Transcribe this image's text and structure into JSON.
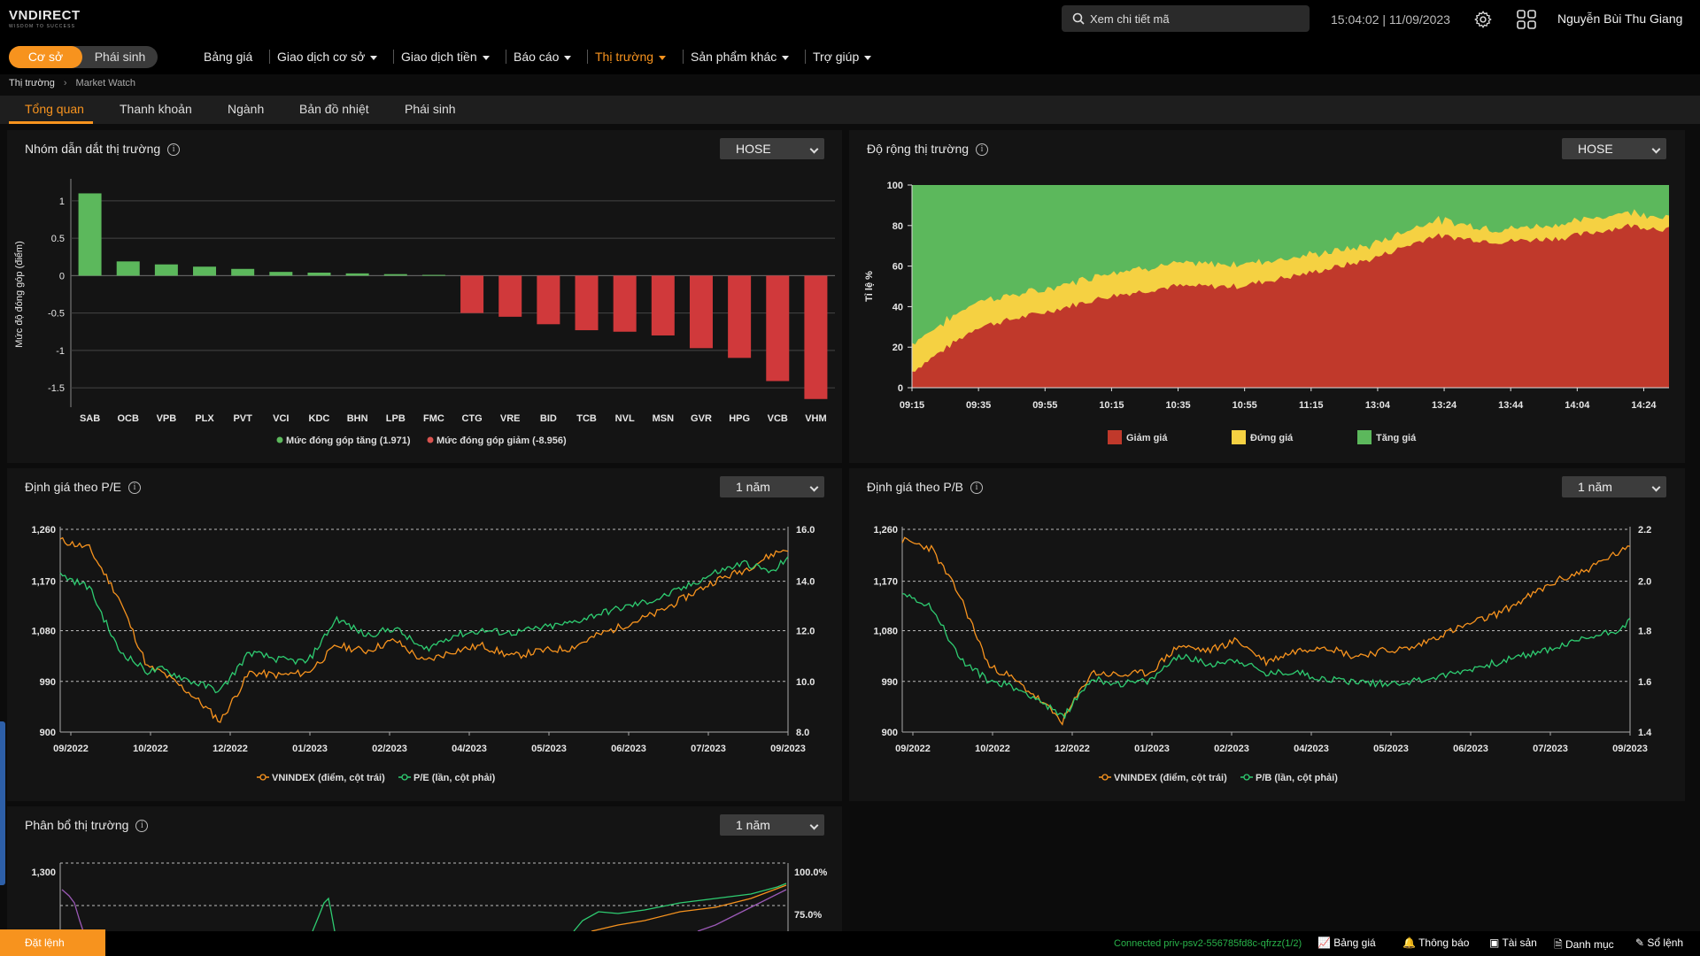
{
  "header": {
    "logo": "VNDIRECT",
    "logo_tagline": "WISDOM TO SUCCESS",
    "search_placeholder": "Xem chi tiết mã",
    "clock": "15:04:02 | 11/09/2023",
    "user_name": "Nguyễn Bùi Thu Giang"
  },
  "nav": {
    "toggle": [
      "Cơ sở",
      "Phái sinh"
    ],
    "items": [
      {
        "label": "Bảng giá",
        "caret": false,
        "active": false
      },
      {
        "label": "Giao dịch cơ sở",
        "caret": true,
        "active": false
      },
      {
        "label": "Giao dịch tiền",
        "caret": true,
        "active": false
      },
      {
        "label": "Báo cáo",
        "caret": true,
        "active": false
      },
      {
        "label": "Thị trường",
        "caret": true,
        "active": true
      },
      {
        "label": "Sản phẩm khác",
        "caret": true,
        "active": false
      },
      {
        "label": "Trợ giúp",
        "caret": true,
        "active": false
      }
    ]
  },
  "breadcrumb": {
    "parent": "Thị trường",
    "current": "Market Watch"
  },
  "tabs": [
    "Tổng quan",
    "Thanh khoản",
    "Ngành",
    "Bản đồ nhiệt",
    "Phái sinh"
  ],
  "colors": {
    "accent": "#f7931e",
    "up": "#5cb85c",
    "down": "#c0392b",
    "ref": "#f5d142",
    "line_orange": "#f7931e",
    "line_green": "#2ecc71"
  },
  "panels": {
    "leaders": {
      "title": "Nhóm dẫn dắt thị trường",
      "select": "HOSE"
    },
    "breadth": {
      "title": "Độ rộng thị trường",
      "select": "HOSE"
    },
    "pe": {
      "title": "Định giá theo P/E",
      "select": "1 năm"
    },
    "pb": {
      "title": "Định giá theo P/B",
      "select": "1 năm"
    },
    "alloc": {
      "title": "Phân bổ thị trường",
      "select": "1 năm"
    }
  },
  "chart_data": [
    {
      "type": "bar",
      "ylabel": "Mức độ đóng góp (điểm)",
      "ylim": [
        -1.7,
        1.2
      ],
      "yticks": [
        1,
        0.5,
        0,
        -0.5,
        -1,
        -1.5
      ],
      "ytick_labels": [
        "1",
        "0.5",
        "0",
        "-0.5",
        "-1",
        "-1.5"
      ],
      "categories": [
        "SAB",
        "OCB",
        "VPB",
        "PLX",
        "PVT",
        "VCI",
        "KDC",
        "BHN",
        "LPB",
        "FMC",
        "CTG",
        "VRE",
        "BID",
        "TCB",
        "NVL",
        "MSN",
        "GVR",
        "HPG",
        "VCB",
        "VHM"
      ],
      "values": [
        1.1,
        0.19,
        0.15,
        0.12,
        0.09,
        0.05,
        0.04,
        0.03,
        0.02,
        0.01,
        -0.5,
        -0.55,
        -0.65,
        -0.73,
        -0.75,
        -0.8,
        -0.97,
        -1.1,
        -1.41,
        -1.65
      ],
      "legend": [
        {
          "name": "Mức đóng góp tăng (1.971)",
          "color": "#5cb85c"
        },
        {
          "name": "Mức đóng góp giảm (-8.956)",
          "color": "#d9534f"
        }
      ]
    },
    {
      "type": "area",
      "ylabel": "Tỉ lệ %",
      "ylim": [
        0,
        100
      ],
      "yticks": [
        0,
        20,
        40,
        60,
        80,
        100
      ],
      "xtick_labels": [
        "09:15",
        "09:35",
        "09:55",
        "10:15",
        "10:35",
        "10:55",
        "11:15",
        "13:04",
        "13:24",
        "13:44",
        "14:04",
        "14:24"
      ],
      "x_index": [
        0,
        5,
        10,
        15,
        20,
        25,
        30,
        35,
        40,
        45,
        50,
        55,
        58
      ],
      "decline": [
        8,
        30,
        37,
        45,
        50,
        50,
        56,
        63,
        75,
        72,
        74,
        80,
        78
      ],
      "unchanged": [
        14,
        13,
        11,
        12,
        11,
        11,
        9,
        7,
        8,
        6,
        7,
        7,
        6
      ],
      "legend": [
        {
          "name": "Giảm giá",
          "color": "#c0392b"
        },
        {
          "name": "Đứng giá",
          "color": "#f5d142"
        },
        {
          "name": "Tăng giá",
          "color": "#5cb85c"
        }
      ]
    },
    {
      "type": "line",
      "ylim_left": [
        900,
        1280
      ],
      "yticks_left": [
        1260,
        1170,
        1080,
        990,
        900
      ],
      "ytick_labels_left": [
        "1,260",
        "1,170",
        "1,080",
        "990",
        "900"
      ],
      "ylim_right": [
        8,
        16.5
      ],
      "ytick_labels_right": [
        "16.0",
        "14.0",
        "12.0",
        "10.0",
        "8.0"
      ],
      "xtick_labels": [
        "09/2022",
        "10/2022",
        "12/2022",
        "01/2023",
        "02/2023",
        "04/2023",
        "05/2023",
        "06/2023",
        "07/2023",
        "09/2023"
      ],
      "x_index": [
        0,
        4,
        8,
        12,
        14,
        18,
        22,
        26,
        30,
        34,
        38,
        42,
        46,
        50,
        54,
        58,
        62,
        66,
        70,
        74,
        78,
        82,
        86,
        90,
        94,
        98,
        100
      ],
      "series": [
        {
          "name": "VNINDEX (điểm, cột trái)",
          "color": "#f7931e",
          "values": [
            1255,
            1240,
            1150,
            1020,
            1010,
            970,
            920,
            1010,
            1005,
            1010,
            1060,
            1050,
            1070,
            1030,
            1050,
            1060,
            1040,
            1050,
            1055,
            1080,
            1100,
            1120,
            1150,
            1180,
            1200,
            1230,
            1240
          ]
        },
        {
          "name": "P/E (lần, cột phải)",
          "color": "#2ecc71",
          "values": [
            14.5,
            14.0,
            11.4,
            10.5,
            10.6,
            10.1,
            9.7,
            11.3,
            11.0,
            10.9,
            12.7,
            12.0,
            12.3,
            11.4,
            12.0,
            12.2,
            12.1,
            12.3,
            12.5,
            12.9,
            13.2,
            13.5,
            14.0,
            14.6,
            15.0,
            14.6,
            15.3
          ]
        }
      ],
      "legend": [
        "VNINDEX (điểm, cột trái)",
        "P/E (lần, cột phải)"
      ]
    },
    {
      "type": "line",
      "ylim_left": [
        900,
        1280
      ],
      "yticks_left": [
        1260,
        1170,
        1080,
        990,
        900
      ],
      "ytick_labels_left": [
        "1,260",
        "1,170",
        "1,080",
        "990",
        "900"
      ],
      "ylim_right": [
        1.4,
        2.25
      ],
      "ytick_labels_right": [
        "2.2",
        "2.0",
        "1.8",
        "1.6",
        "1.4"
      ],
      "xtick_labels": [
        "09/2022",
        "10/2022",
        "12/2022",
        "01/2023",
        "02/2023",
        "04/2023",
        "05/2023",
        "06/2023",
        "07/2023",
        "09/2023"
      ],
      "x_index": [
        0,
        4,
        8,
        12,
        14,
        18,
        22,
        26,
        30,
        34,
        38,
        42,
        46,
        50,
        54,
        58,
        62,
        66,
        70,
        74,
        78,
        82,
        86,
        90,
        94,
        98,
        100
      ],
      "series": [
        {
          "name": "VNINDEX (điểm, cột trái)",
          "color": "#f7931e",
          "values": [
            1255,
            1240,
            1150,
            1020,
            1010,
            970,
            920,
            1010,
            1005,
            1010,
            1060,
            1050,
            1070,
            1030,
            1050,
            1060,
            1040,
            1050,
            1055,
            1080,
            1100,
            1120,
            1150,
            1180,
            1200,
            1230,
            1240
          ]
        },
        {
          "name": "P/B (lần, cột phải)",
          "color": "#2ecc71",
          "values": [
            1.98,
            1.92,
            1.7,
            1.61,
            1.6,
            1.55,
            1.46,
            1.62,
            1.6,
            1.61,
            1.72,
            1.68,
            1.7,
            1.64,
            1.65,
            1.62,
            1.61,
            1.6,
            1.61,
            1.63,
            1.66,
            1.69,
            1.72,
            1.75,
            1.79,
            1.82,
            1.86
          ]
        }
      ],
      "legend": [
        "VNINDEX (điểm, cột trái)",
        "P/B (lần, cột phải)"
      ]
    },
    {
      "type": "line",
      "ytick_labels_left": [
        "1,300"
      ],
      "ytick_labels_right": [
        "100.0%",
        "75.0%"
      ]
    }
  ],
  "footer": {
    "order_button": "Đặt lệnh",
    "connection": "Connected priv-psv2-556785fd8c-qfrzz(1/2)",
    "links": [
      "Bảng giá",
      "Thông báo",
      "Tài sản",
      "Danh mục",
      "Sổ lệnh"
    ]
  }
}
